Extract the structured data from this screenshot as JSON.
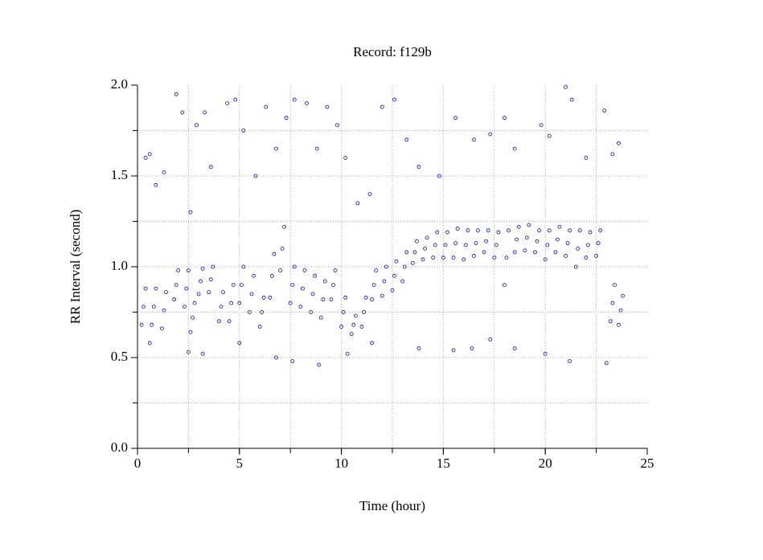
{
  "chart_data": {
    "type": "scatter",
    "title": "Record:  f129b",
    "x_label": "Time (hour)",
    "y_label": "RR Interval (second)",
    "xlim": [
      0,
      25
    ],
    "ylim": [
      0,
      2.0
    ],
    "xticks": [
      0,
      5,
      10,
      15,
      20,
      25
    ],
    "yticks": [
      {
        "value": 0,
        "label": "0.0"
      },
      {
        "value": 0.5,
        "label": "0.5"
      },
      {
        "value": 1.0,
        "label": "1.0"
      },
      {
        "value": 1.5,
        "label": "1.5"
      },
      {
        "value": 2.0,
        "label": "2.0"
      }
    ],
    "xgrid": [
      2.5,
      5,
      7.5,
      10,
      12.5,
      15,
      17.5,
      20,
      22.5
    ],
    "ygrid": [
      0.25,
      0.5,
      0.75,
      1.0,
      1.25,
      1.5,
      1.75
    ],
    "grid": true,
    "series": [
      {
        "color": "#0000ff",
        "x": [
          0.2,
          0.3,
          0.4,
          0.7,
          0.8,
          0.9,
          1.2,
          1.3,
          1.4,
          1.8,
          1.9,
          2.0,
          2.3,
          2.4,
          2.5,
          2.6,
          2.7,
          2.8,
          3.0,
          3.1,
          3.2,
          3.5,
          3.6,
          3.7,
          4.0,
          4.1,
          4.2,
          4.5,
          4.6,
          4.7,
          5.0,
          5.1,
          5.2,
          5.5,
          5.6,
          5.7,
          6.0,
          6.1,
          6.2,
          6.5,
          6.6,
          6.7,
          7.0,
          7.1,
          7.2,
          7.5,
          7.6,
          7.7,
          8.0,
          8.1,
          8.2,
          8.5,
          8.6,
          8.7,
          9.0,
          9.1,
          9.2,
          9.5,
          9.6,
          9.7,
          10.0,
          10.1,
          10.2,
          10.5,
          10.6,
          10.7,
          11.0,
          11.1,
          11.2,
          11.5,
          11.6,
          11.7,
          12.0,
          12.1,
          12.2,
          12.5,
          12.6,
          12.7,
          13.0,
          13.1,
          13.2,
          13.5,
          13.6,
          13.7,
          14.0,
          14.1,
          14.2,
          14.5,
          14.6,
          14.7,
          15.0,
          15.1,
          15.2,
          15.5,
          15.6,
          15.7,
          16.0,
          16.1,
          16.2,
          16.5,
          16.6,
          16.7,
          17.0,
          17.1,
          17.2,
          17.5,
          17.6,
          17.7,
          18.0,
          18.1,
          18.2,
          18.5,
          18.6,
          18.7,
          19.0,
          19.1,
          19.2,
          19.5,
          19.6,
          19.7,
          20.0,
          20.1,
          20.2,
          20.5,
          20.6,
          20.7,
          21.0,
          21.1,
          21.2,
          21.5,
          21.6,
          21.7,
          22.0,
          22.1,
          22.2,
          22.5,
          22.6,
          22.7,
          23.2,
          23.3,
          23.4,
          23.6,
          23.7,
          23.8,
          0.4,
          0.6,
          0.9,
          1.3,
          1.9,
          2.2,
          2.6,
          2.9,
          3.3,
          3.6,
          4.4,
          4.8,
          5.2,
          5.8,
          6.3,
          6.8,
          7.3,
          7.7,
          8.3,
          8.8,
          9.3,
          9.8,
          10.2,
          10.8,
          11.4,
          12.0,
          12.6,
          13.2,
          13.8,
          14.8,
          15.6,
          16.5,
          17.3,
          18.0,
          18.5,
          19.8,
          20.2,
          21.0,
          21.3,
          22.0,
          22.9,
          23.3,
          23.6,
          0.6,
          2.5,
          3.2,
          5.0,
          6.8,
          7.6,
          8.9,
          10.3,
          11.5,
          13.8,
          15.5,
          16.4,
          17.3,
          18.5,
          20.0,
          21.2,
          23.0
        ],
        "values": [
          0.68,
          0.78,
          0.88,
          0.68,
          0.78,
          0.88,
          0.66,
          0.76,
          0.86,
          0.82,
          0.9,
          0.98,
          0.78,
          0.88,
          0.98,
          0.64,
          0.72,
          0.8,
          0.85,
          0.92,
          0.99,
          0.86,
          0.93,
          1.0,
          0.7,
          0.78,
          0.86,
          0.7,
          0.8,
          0.9,
          0.8,
          0.9,
          1.0,
          0.75,
          0.85,
          0.95,
          0.67,
          0.75,
          0.83,
          0.83,
          0.95,
          1.07,
          0.98,
          1.1,
          1.22,
          0.8,
          0.9,
          1.0,
          0.78,
          0.88,
          0.98,
          0.75,
          0.85,
          0.95,
          0.72,
          0.82,
          0.92,
          0.82,
          0.9,
          0.98,
          0.67,
          0.75,
          0.83,
          0.63,
          0.68,
          0.73,
          0.67,
          0.75,
          0.83,
          0.82,
          0.9,
          0.98,
          0.84,
          0.92,
          1.0,
          0.87,
          0.95,
          1.03,
          0.92,
          1.0,
          1.08,
          1.02,
          1.08,
          1.14,
          1.04,
          1.1,
          1.16,
          1.05,
          1.12,
          1.19,
          1.05,
          1.12,
          1.19,
          1.05,
          1.13,
          1.21,
          1.04,
          1.12,
          1.2,
          1.06,
          1.13,
          1.2,
          1.08,
          1.14,
          1.2,
          1.05,
          1.12,
          1.19,
          0.9,
          1.05,
          1.2,
          1.08,
          1.15,
          1.22,
          1.09,
          1.16,
          1.23,
          1.08,
          1.14,
          1.2,
          1.04,
          1.12,
          1.2,
          1.08,
          1.15,
          1.22,
          1.06,
          1.13,
          1.2,
          1.0,
          1.1,
          1.2,
          1.05,
          1.12,
          1.19,
          1.06,
          1.13,
          1.2,
          0.7,
          0.8,
          0.9,
          0.68,
          0.76,
          0.84,
          1.6,
          1.62,
          1.45,
          1.52,
          1.95,
          1.85,
          1.3,
          1.78,
          1.85,
          1.55,
          1.9,
          1.92,
          1.75,
          1.5,
          1.88,
          1.65,
          1.82,
          1.92,
          1.9,
          1.65,
          1.88,
          1.78,
          1.6,
          1.35,
          1.4,
          1.88,
          1.92,
          1.7,
          1.55,
          1.5,
          1.82,
          1.7,
          1.73,
          1.82,
          1.65,
          1.78,
          1.72,
          1.99,
          1.92,
          1.6,
          1.86,
          1.62,
          1.68,
          0.58,
          0.53,
          0.52,
          0.58,
          0.5,
          0.48,
          0.46,
          0.52,
          0.58,
          0.55,
          0.54,
          0.55,
          0.6,
          0.55,
          0.52,
          0.48,
          0.47
        ]
      }
    ]
  }
}
